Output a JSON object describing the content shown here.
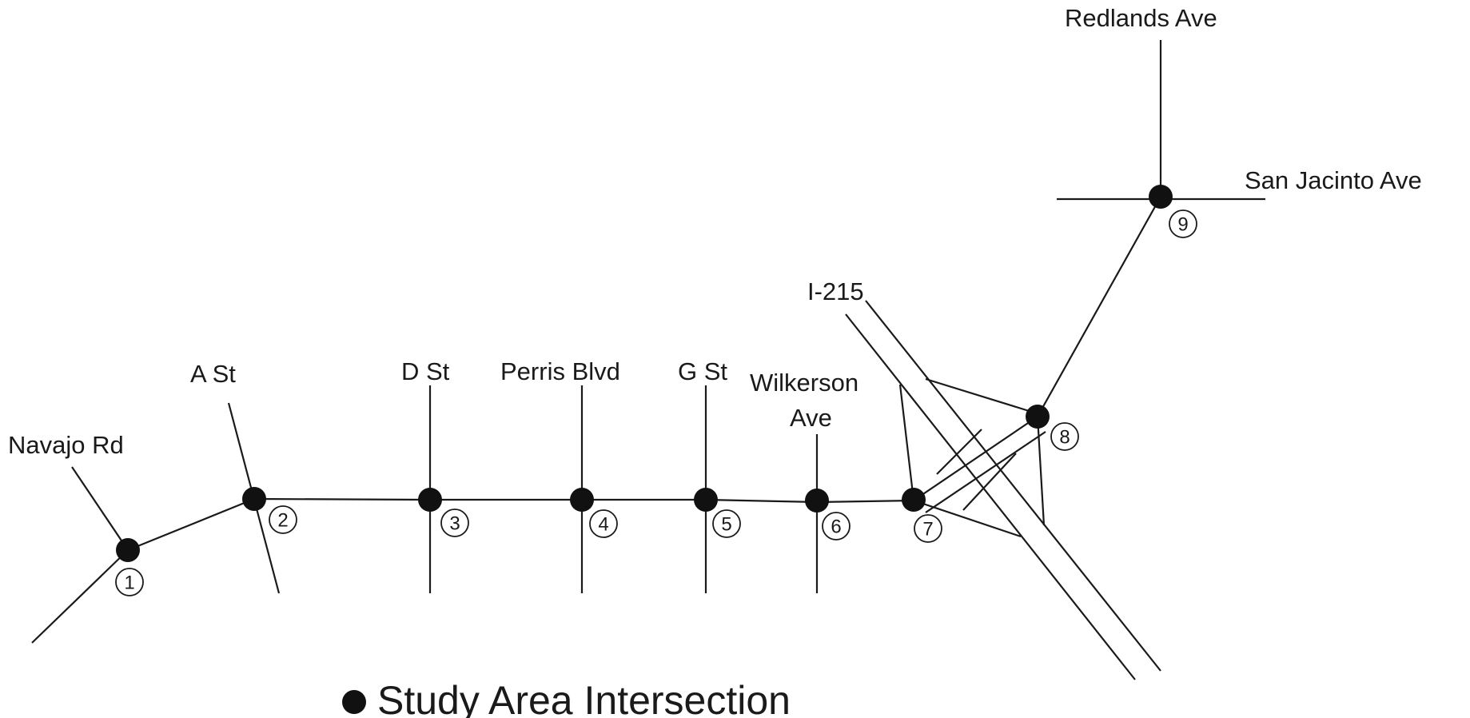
{
  "streets": {
    "navajo": "Navajo Rd",
    "a_st": "A St",
    "d_st": "D St",
    "perris": "Perris Blvd",
    "g_st": "G St",
    "wilkerson_1": "Wilkerson",
    "wilkerson_2": "Ave",
    "freeway": "I-215",
    "redlands": "Redlands Ave",
    "san_jacinto": "San Jacinto Ave"
  },
  "intersections": [
    {
      "number": "1"
    },
    {
      "number": "2"
    },
    {
      "number": "3"
    },
    {
      "number": "4"
    },
    {
      "number": "5"
    },
    {
      "number": "6"
    },
    {
      "number": "7"
    },
    {
      "number": "8"
    },
    {
      "number": "9"
    }
  ],
  "legend": {
    "label": "Study Area Intersection"
  },
  "colors": {
    "line": "#1a1a1a",
    "marker": "#111111",
    "background": "#ffffff"
  }
}
